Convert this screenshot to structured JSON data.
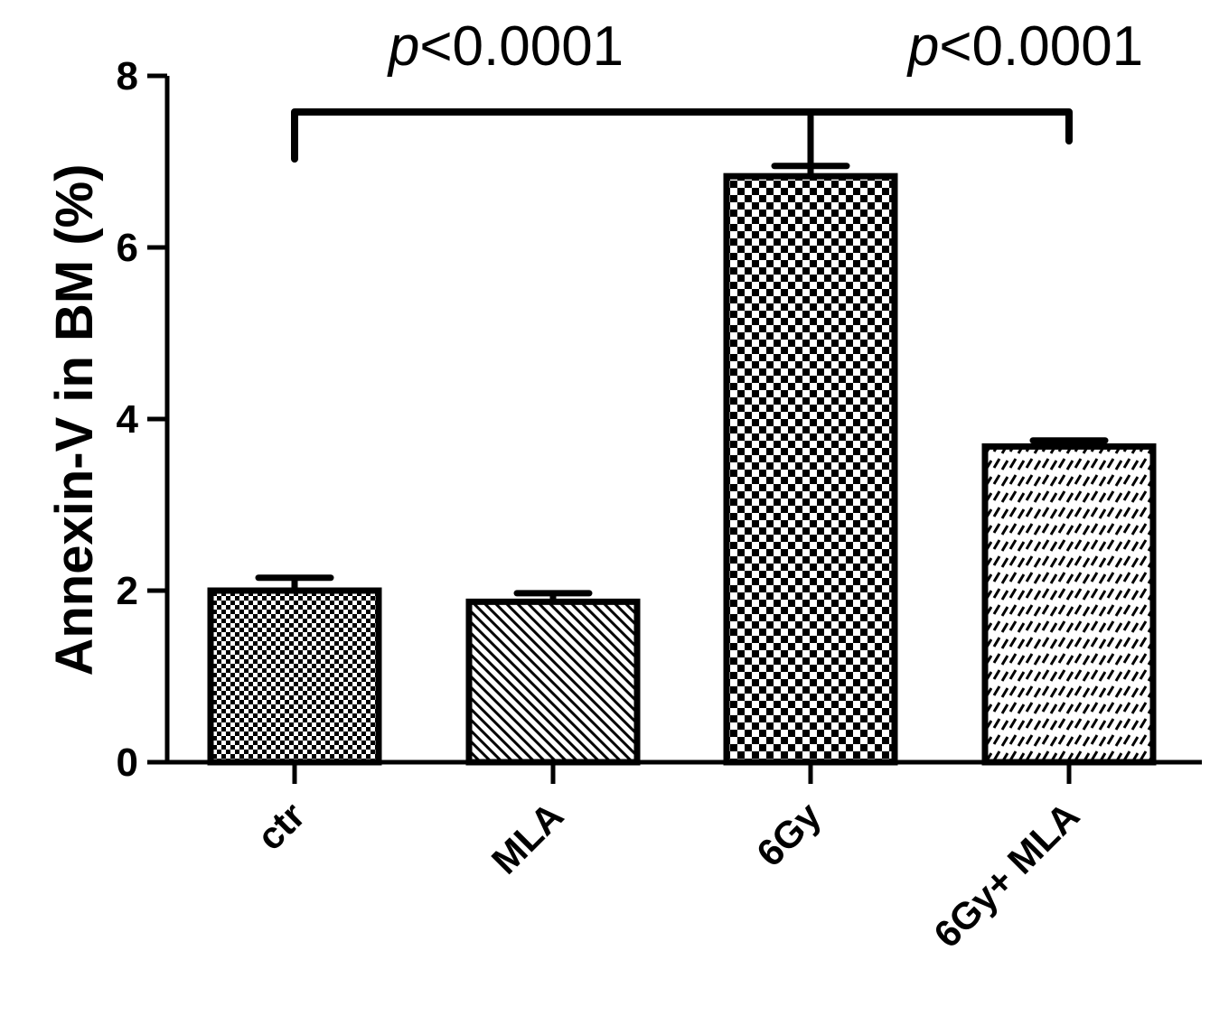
{
  "chart_data": {
    "type": "bar",
    "categories": [
      "ctr",
      "MLA",
      "6Gy",
      "6Gy+ MLA"
    ],
    "values": [
      2.0,
      1.87,
      6.83,
      3.68
    ],
    "errors": [
      0.15,
      0.1,
      0.12,
      0.07
    ],
    "patterns": [
      "fine-check",
      "diagonal-down",
      "coarse-check",
      "diagonal-dash"
    ],
    "ylabel": "Annexin-V in BM (%)",
    "ylim": [
      0,
      8
    ],
    "yticks": [
      "0",
      "2",
      "4",
      "6",
      "8"
    ],
    "grid": false,
    "significance": [
      {
        "from": "ctr",
        "to": "6Gy",
        "p_prefix": "p",
        "p_text": "<0.0001"
      },
      {
        "from": "6Gy",
        "to": "6Gy+ MLA",
        "p_prefix": "p",
        "p_text": "<0.0001"
      }
    ]
  }
}
